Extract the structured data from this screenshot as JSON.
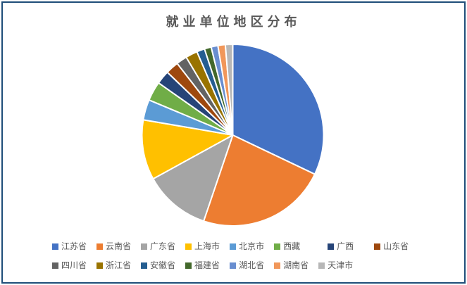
{
  "frame": {
    "border_color": "#1F4E79",
    "background": "#FFFFFF"
  },
  "title": {
    "text": "就业单位地区分布",
    "color": "#595959"
  },
  "chart_data": {
    "type": "pie",
    "title": "就业单位地区分布",
    "legend_position": "bottom",
    "legend_row_split": 8,
    "start_angle_deg": 0,
    "direction": "clockwise",
    "values_unit": "percent (estimated from slice angles)",
    "slices": [
      {
        "label": "江苏省",
        "value_pct": 31.8,
        "color": "#4472C4"
      },
      {
        "label": "云南省",
        "value_pct": 22.9,
        "color": "#ED7D31"
      },
      {
        "label": "广东省",
        "value_pct": 11.7,
        "color": "#A5A5A5"
      },
      {
        "label": "上海市",
        "value_pct": 10.6,
        "color": "#FFC000"
      },
      {
        "label": "北京市",
        "value_pct": 3.6,
        "color": "#5B9BD5"
      },
      {
        "label": "西藏",
        "value_pct": 3.4,
        "color": "#70AD47"
      },
      {
        "label": "广西",
        "value_pct": 2.4,
        "color": "#264478"
      },
      {
        "label": "山东省",
        "value_pct": 2.3,
        "color": "#9E480E"
      },
      {
        "label": "四川省",
        "value_pct": 1.9,
        "color": "#636363"
      },
      {
        "label": "浙江省",
        "value_pct": 2.1,
        "color": "#997300"
      },
      {
        "label": "安徽省",
        "value_pct": 1.4,
        "color": "#255E91"
      },
      {
        "label": "福建省",
        "value_pct": 1.2,
        "color": "#43682B"
      },
      {
        "label": "湖北省",
        "value_pct": 1.2,
        "color": "#698ED0"
      },
      {
        "label": "湖南省",
        "value_pct": 1.3,
        "color": "#F1975A"
      },
      {
        "label": "天津市",
        "value_pct": 1.3,
        "color": "#B7B7B7"
      }
    ]
  }
}
